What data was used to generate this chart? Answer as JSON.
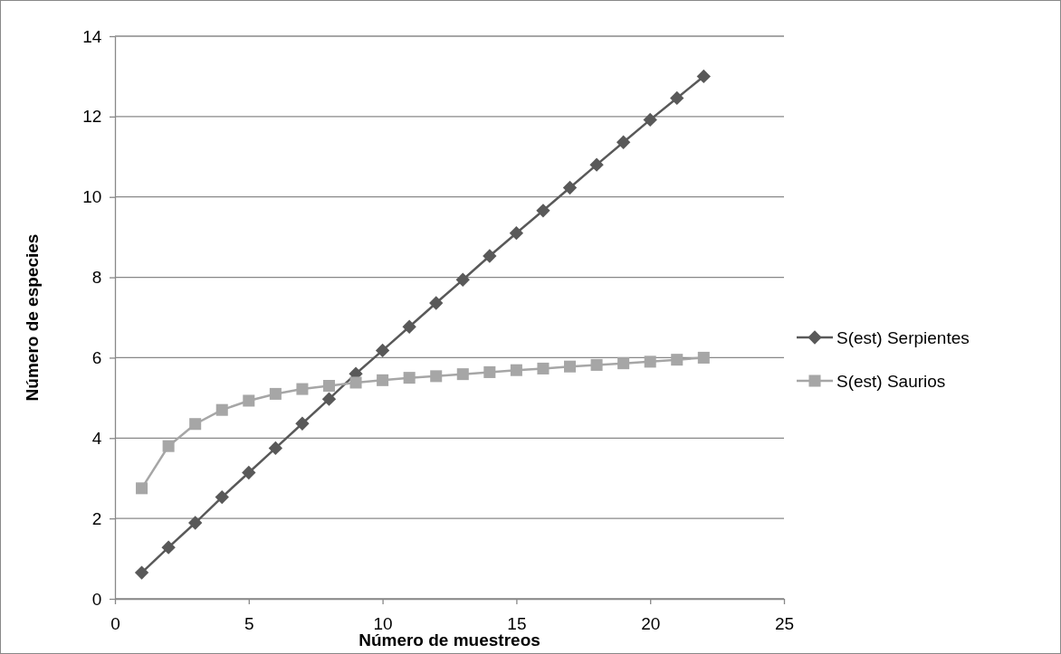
{
  "chart_data": {
    "type": "line",
    "xlabel": "Número de muestreos",
    "ylabel": "Número de especies",
    "x": [
      1,
      2,
      3,
      4,
      5,
      6,
      7,
      8,
      9,
      10,
      11,
      12,
      13,
      14,
      15,
      16,
      17,
      18,
      19,
      20,
      21,
      22
    ],
    "series": [
      {
        "name": "S(est) Serpientes",
        "color": "#595959",
        "marker": "diamond",
        "values": [
          0.65,
          1.28,
          1.89,
          2.53,
          3.14,
          3.75,
          4.36,
          4.97,
          5.6,
          6.18,
          6.77,
          7.36,
          7.94,
          8.53,
          9.1,
          9.66,
          10.23,
          10.8,
          11.36,
          11.92,
          12.46,
          13.0
        ]
      },
      {
        "name": "S(est) Saurios",
        "color": "#a6a6a6",
        "marker": "square",
        "values": [
          2.75,
          3.8,
          4.35,
          4.7,
          4.93,
          5.1,
          5.22,
          5.3,
          5.38,
          5.44,
          5.5,
          5.54,
          5.59,
          5.64,
          5.69,
          5.73,
          5.78,
          5.82,
          5.86,
          5.9,
          5.95,
          6.0
        ]
      }
    ],
    "xlim": [
      0,
      25
    ],
    "xticks": [
      0,
      5,
      10,
      15,
      20,
      25
    ],
    "ylim": [
      0,
      14
    ],
    "yticks": [
      0,
      2,
      4,
      6,
      8,
      10,
      12,
      14
    ],
    "grid": "y",
    "legend": "right",
    "line_style": "solid"
  }
}
